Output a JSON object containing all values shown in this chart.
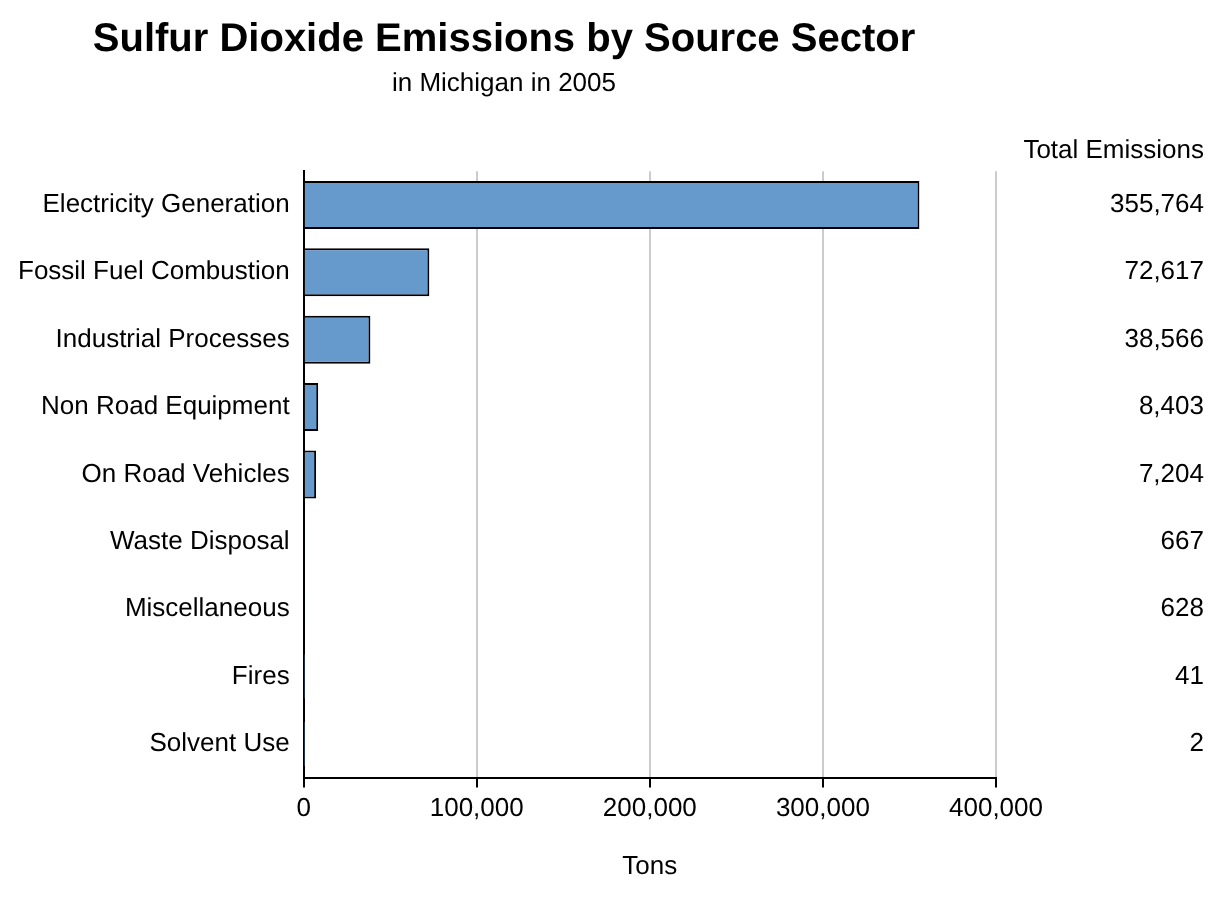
{
  "chart_data": {
    "type": "bar",
    "orientation": "horizontal",
    "title": "Sulfur Dioxide Emissions by Source Sector",
    "subtitle": "in Michigan in 2005",
    "xlabel": "Tons",
    "categories": [
      "Electricity Generation",
      "Fossil Fuel Combustion",
      "Industrial Processes",
      "Non Road Equipment",
      "On Road Vehicles",
      "Waste Disposal",
      "Miscellaneous",
      "Fires",
      "Solvent Use"
    ],
    "values": [
      355764,
      72617,
      38566,
      8403,
      7204,
      667,
      628,
      41,
      2
    ],
    "value_labels": [
      "355,764",
      "72,617",
      "38,566",
      "8,403",
      "7,204",
      "667",
      "628",
      "41",
      "2"
    ],
    "color": "#6699cc",
    "xlim": [
      0,
      400000
    ],
    "xticks": [
      0,
      {
        "value": 100000,
        "label": "100,000"
      },
      {
        "value": 200000,
        "label": "200,000"
      },
      {
        "value": 300000,
        "label": "300,000"
      },
      {
        "value": 400000,
        "label": "400,000"
      }
    ],
    "grid": "x",
    "legend": false,
    "annotations": [
      "Total Emissions"
    ]
  }
}
